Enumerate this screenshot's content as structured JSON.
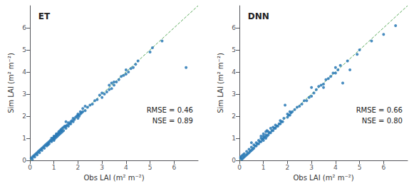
{
  "chart_data": [
    {
      "type": "scatter",
      "title": "ET",
      "xlabel": "Obs LAI (m² m⁻²)",
      "ylabel": "Sim LAI (m² m⁻²)",
      "xlim": [
        0,
        7
      ],
      "ylim": [
        0,
        7
      ],
      "xticks": [
        0,
        1,
        2,
        3,
        4,
        5,
        6
      ],
      "yticks": [
        0,
        1,
        2,
        3,
        4,
        5,
        6
      ],
      "grid": false,
      "annotations": [
        "RMSE = 0.46",
        "NSE = 0.89"
      ],
      "series": [
        {
          "type": "scatter",
          "color": "#2878b5",
          "x": [
            0.05,
            0.1,
            0.1,
            0.15,
            0.2,
            0.2,
            0.25,
            0.3,
            0.3,
            0.35,
            0.4,
            0.4,
            0.45,
            0.5,
            0.5,
            0.55,
            0.6,
            0.6,
            0.65,
            0.7,
            0.7,
            0.75,
            0.75,
            0.8,
            0.8,
            0.85,
            0.9,
            0.9,
            0.9,
            0.95,
            1.0,
            1.0,
            1.0,
            1.0,
            1.05,
            1.05,
            1.1,
            1.1,
            1.1,
            1.15,
            1.15,
            1.2,
            1.2,
            1.2,
            1.25,
            1.25,
            1.3,
            1.3,
            1.3,
            1.35,
            1.35,
            1.4,
            1.4,
            1.45,
            1.5,
            1.5,
            1.5,
            1.55,
            1.6,
            1.6,
            1.65,
            1.7,
            1.7,
            1.75,
            1.8,
            1.8,
            1.85,
            1.9,
            1.95,
            2.0,
            2.0,
            2.0,
            2.05,
            2.1,
            2.1,
            2.15,
            2.2,
            2.2,
            2.3,
            2.3,
            2.4,
            2.5,
            2.6,
            2.7,
            2.8,
            2.9,
            3.0,
            3.0,
            3.1,
            3.2,
            3.3,
            3.3,
            3.4,
            3.4,
            3.5,
            3.5,
            3.6,
            3.7,
            3.8,
            3.9,
            4.0,
            4.0,
            4.1,
            4.2,
            4.3,
            4.4,
            4.5,
            5.0,
            5.1,
            5.5,
            6.5
          ],
          "values": [
            0.1,
            0.05,
            0.15,
            0.2,
            0.15,
            0.25,
            0.3,
            0.25,
            0.35,
            0.4,
            0.35,
            0.45,
            0.5,
            0.45,
            0.55,
            0.6,
            0.55,
            0.65,
            0.7,
            0.65,
            0.75,
            0.7,
            0.8,
            0.75,
            0.85,
            0.9,
            0.85,
            0.9,
            1.0,
            1.0,
            0.9,
            0.95,
            1.05,
            1.1,
            1.0,
            1.1,
            1.05,
            1.15,
            1.2,
            1.1,
            1.2,
            1.15,
            1.25,
            1.3,
            1.2,
            1.35,
            1.25,
            1.35,
            1.4,
            1.3,
            1.45,
            1.35,
            1.5,
            1.55,
            1.45,
            1.55,
            1.75,
            1.6,
            1.55,
            1.7,
            1.65,
            1.65,
            1.75,
            1.8,
            1.75,
            1.9,
            1.85,
            1.95,
            2.0,
            1.9,
            2.05,
            2.1,
            2.0,
            2.1,
            2.2,
            2.15,
            2.2,
            2.35,
            2.25,
            2.45,
            2.4,
            2.5,
            2.55,
            2.7,
            2.75,
            2.95,
            2.85,
            3.05,
            3.0,
            3.1,
            3.2,
            3.4,
            3.25,
            3.5,
            3.4,
            3.55,
            3.55,
            3.65,
            3.8,
            3.85,
            3.9,
            4.1,
            4.0,
            4.15,
            4.2,
            4.35,
            4.5,
            4.9,
            5.1,
            5.4,
            4.2
          ]
        },
        {
          "type": "line",
          "line_style": "dashed",
          "color": "#5aaa5a",
          "x": [
            0,
            7
          ],
          "values": [
            0,
            7
          ]
        }
      ]
    },
    {
      "type": "scatter",
      "title": "DNN",
      "xlabel": "Obs LAI (m² m⁻²)",
      "ylabel": "Sim LAI (m² m⁻²)",
      "xlim": [
        0,
        7
      ],
      "ylim": [
        0,
        7
      ],
      "xticks": [
        0,
        1,
        2,
        3,
        4,
        5,
        6
      ],
      "yticks": [
        0,
        1,
        2,
        3,
        4,
        5,
        6
      ],
      "grid": false,
      "annotations": [
        "RMSE = 0.66",
        "NSE = 0.80"
      ],
      "series": [
        {
          "type": "scatter",
          "color": "#2878b5",
          "x": [
            0.05,
            0.05,
            0.1,
            0.1,
            0.15,
            0.15,
            0.2,
            0.2,
            0.25,
            0.3,
            0.3,
            0.35,
            0.4,
            0.4,
            0.45,
            0.5,
            0.5,
            0.5,
            0.55,
            0.6,
            0.6,
            0.65,
            0.7,
            0.7,
            0.75,
            0.8,
            0.8,
            0.85,
            0.9,
            0.9,
            0.9,
            0.95,
            1.0,
            1.0,
            1.0,
            1.0,
            1.05,
            1.1,
            1.1,
            1.1,
            1.15,
            1.15,
            1.2,
            1.2,
            1.25,
            1.3,
            1.3,
            1.35,
            1.4,
            1.4,
            1.45,
            1.5,
            1.5,
            1.55,
            1.6,
            1.65,
            1.7,
            1.7,
            1.75,
            1.8,
            1.85,
            1.9,
            2.0,
            2.0,
            2.05,
            2.1,
            2.1,
            2.15,
            2.2,
            2.3,
            2.4,
            2.5,
            2.6,
            2.7,
            2.8,
            2.9,
            3.0,
            3.0,
            3.1,
            3.2,
            3.3,
            3.4,
            3.5,
            3.5,
            3.6,
            3.7,
            3.8,
            3.9,
            4.0,
            4.0,
            4.1,
            4.2,
            4.3,
            4.5,
            4.6,
            4.9,
            5.0,
            5.5,
            6.0,
            6.5
          ],
          "values": [
            0.1,
            0.15,
            0.05,
            0.2,
            0.1,
            0.25,
            0.15,
            0.3,
            0.2,
            0.25,
            0.4,
            0.3,
            0.35,
            0.5,
            0.4,
            0.45,
            0.6,
            0.8,
            0.5,
            0.55,
            0.7,
            0.65,
            0.65,
            0.8,
            0.75,
            0.75,
            0.9,
            0.85,
            0.85,
            1.0,
            1.1,
            0.95,
            0.9,
            1.0,
            1.1,
            1.2,
            1.05,
            1.0,
            1.15,
            1.3,
            1.1,
            1.35,
            1.15,
            1.3,
            1.25,
            1.25,
            1.45,
            1.35,
            1.35,
            1.5,
            1.45,
            1.45,
            1.6,
            1.55,
            1.55,
            1.65,
            1.65,
            1.8,
            1.75,
            1.75,
            1.9,
            2.5,
            1.95,
            2.1,
            2.05,
            2.05,
            2.2,
            2.15,
            2.2,
            2.3,
            2.4,
            2.45,
            2.55,
            2.7,
            2.7,
            2.85,
            2.9,
            3.3,
            3.05,
            3.2,
            3.35,
            3.4,
            3.45,
            3.3,
            3.65,
            3.7,
            3.8,
            3.95,
            3.95,
            4.2,
            4.1,
            4.3,
            3.5,
            4.5,
            4.1,
            4.8,
            5.0,
            5.4,
            5.7,
            6.1
          ]
        },
        {
          "type": "line",
          "line_style": "dashed",
          "color": "#5aaa5a",
          "x": [
            0,
            7
          ],
          "values": [
            0,
            7
          ]
        }
      ]
    }
  ]
}
